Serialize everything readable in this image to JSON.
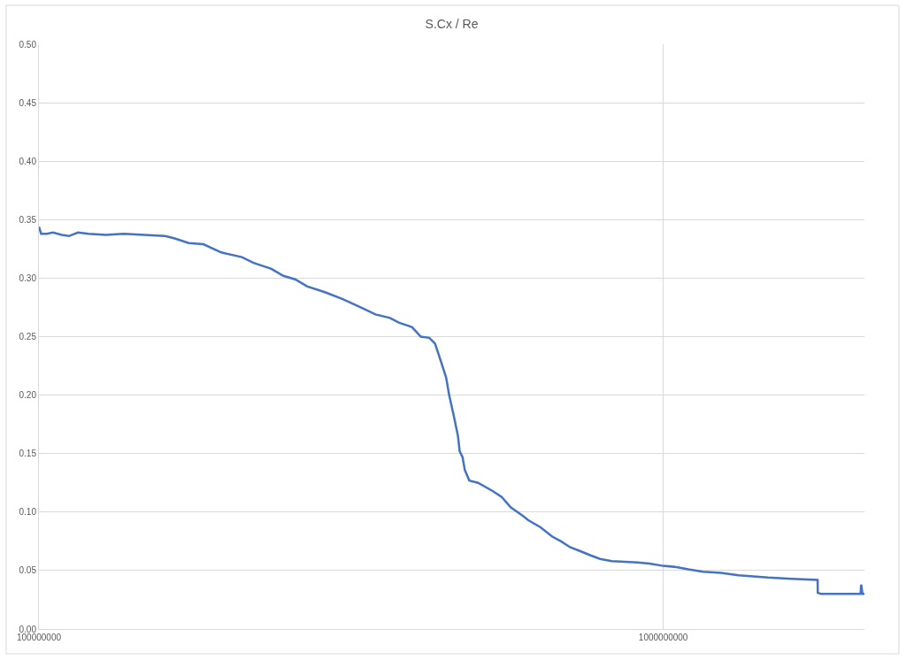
{
  "chart_data": {
    "type": "line",
    "title": "S.Cx / Re",
    "x": [
      100000000.0,
      100800000.0,
      103000000.0,
      105300000.0,
      108800000.0,
      111700000.0,
      115500000.0,
      120000000.0,
      128000000.0,
      136700000.0,
      147500000.0,
      159300000.0,
      165000000.0,
      173800000.0,
      183400000.0,
      195900000.0,
      211400000.0,
      220700000.0,
      235700000.0,
      246300000.0,
      257300000.0,
      268800000.0,
      287100000.0,
      306700000.0,
      327600000.0,
      346000000.0,
      365000000.0,
      377000000.0,
      392000000.0,
      396000000.0,
      409000000.0,
      422000000.0,
      431000000.0,
      441000000.0,
      449000000.0,
      454000000.0,
      462000000.0,
      469000000.0,
      472000000.0,
      477000000.0,
      481000000.0,
      489000000.0,
      505000000.0,
      533000000.0,
      551000000.0,
      570000000.0,
      595000000.0,
      608000000.0,
      636000000.0,
      664000000.0,
      686000000.0,
      709000000.0,
      741000000.0,
      765000000.0,
      792000000.0,
      827000000.0,
      910000000.0,
      950000000.0,
      1000000000.0,
      1050000000.0,
      1097000000.0,
      1158000000.0,
      1237000000.0,
      1320000000.0,
      1472000000.0,
      1606000000.0,
      1767000000.0,
      1768000000.0,
      1790000000.0,
      2070000000.0,
      2075000000.0,
      2085000000.0,
      2100000000.0
    ],
    "series": [
      {
        "color": "#4472c4",
        "values": [
          0.344,
          0.338,
          0.338,
          0.339,
          0.337,
          0.336,
          0.339,
          0.338,
          0.337,
          0.338,
          0.337,
          0.336,
          0.334,
          0.33,
          0.329,
          0.322,
          0.318,
          0.313,
          0.308,
          0.302,
          0.299,
          0.293,
          0.288,
          0.282,
          0.275,
          0.269,
          0.266,
          0.262,
          0.259,
          0.258,
          0.25,
          0.249,
          0.244,
          0.228,
          0.215,
          0.2,
          0.182,
          0.165,
          0.152,
          0.147,
          0.136,
          0.127,
          0.125,
          0.118,
          0.113,
          0.104,
          0.097,
          0.093,
          0.087,
          0.079,
          0.075,
          0.07,
          0.066,
          0.063,
          0.06,
          0.058,
          0.057,
          0.056,
          0.054,
          0.053,
          0.051,
          0.049,
          0.048,
          0.046,
          0.044,
          0.043,
          0.042,
          0.031,
          0.03,
          0.03,
          0.038,
          0.03,
          0.03
        ]
      }
    ],
    "log": "x",
    "xlim": [
      100000000,
      2100000000
    ],
    "xticks": [
      100000000,
      1000000000
    ],
    "ylim": [
      0,
      0.5
    ],
    "yticks": [
      {
        "value": 0,
        "label": "0.00"
      },
      {
        "value": 0.05,
        "label": "0.05"
      },
      {
        "value": 0.1,
        "label": "0.10"
      },
      {
        "value": 0.15,
        "label": "0.15"
      },
      {
        "value": 0.2,
        "label": "0.20"
      },
      {
        "value": 0.25,
        "label": "0.25"
      },
      {
        "value": 0.3,
        "label": "0.30"
      },
      {
        "value": 0.35,
        "label": "0.35"
      },
      {
        "value": 0.4,
        "label": "0.40"
      },
      {
        "value": 0.45,
        "label": "0.45"
      },
      {
        "value": 0.5,
        "label": "0.50"
      }
    ],
    "grid": true,
    "marker": "none",
    "line_style": "solid"
  }
}
